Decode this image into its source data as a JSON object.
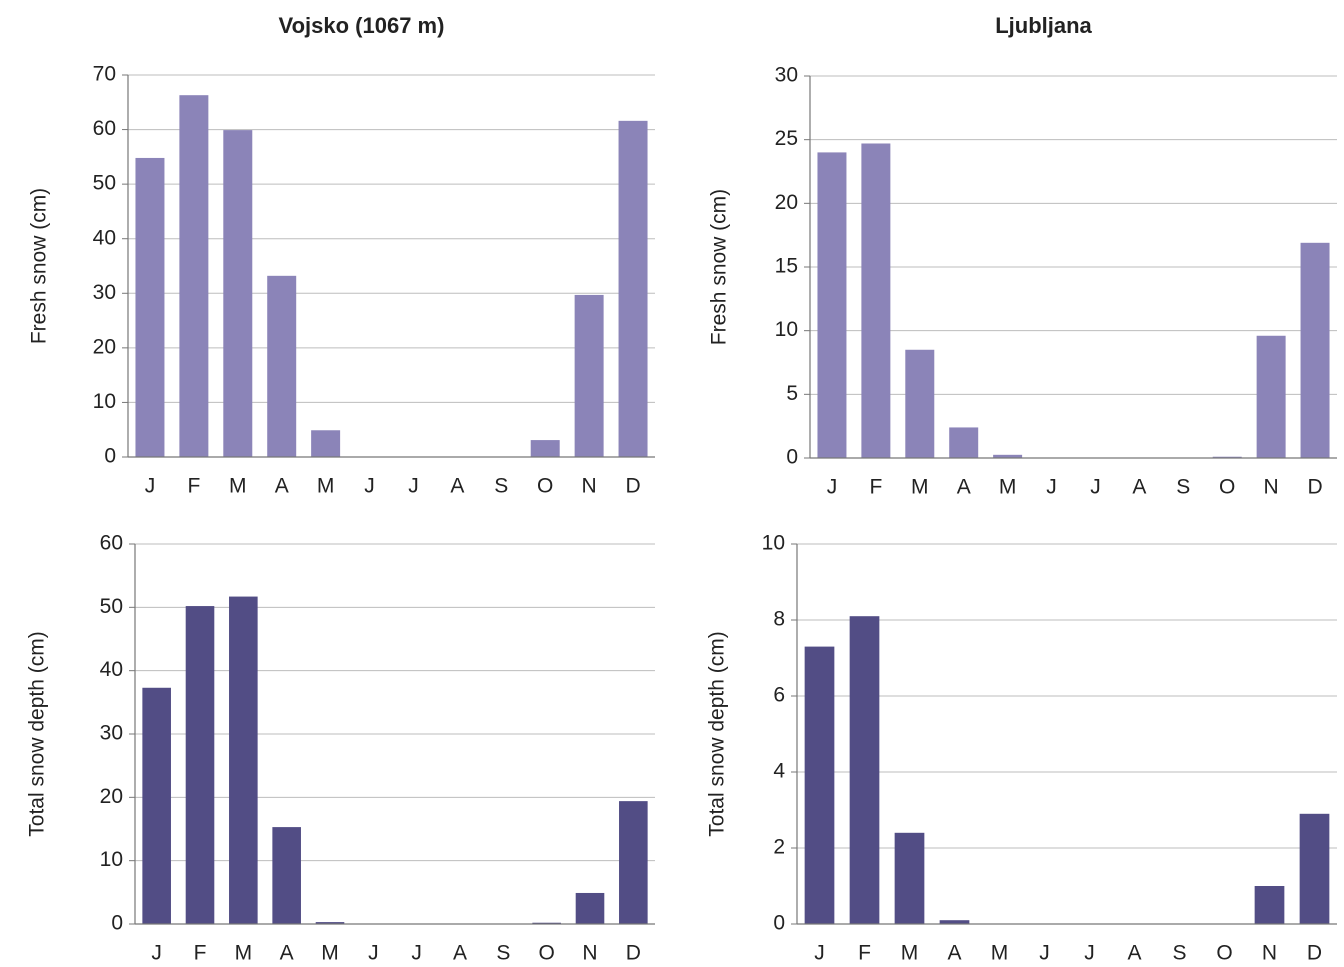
{
  "chart_data": [
    {
      "type": "bar",
      "title": "Vojsko (1067 m)",
      "y_label": "Fresh snow (cm)",
      "categories": [
        "J",
        "F",
        "M",
        "A",
        "M",
        "J",
        "J",
        "A",
        "S",
        "O",
        "N",
        "D"
      ],
      "values": [
        54.8,
        66.3,
        59.9,
        33.2,
        4.9,
        0,
        0,
        0,
        0,
        3.1,
        29.7,
        61.6
      ],
      "color": "#8b84b8",
      "ylim": [
        0,
        70
      ],
      "yticks": [
        0,
        10,
        20,
        30,
        40,
        50,
        60,
        70
      ],
      "grid": true
    },
    {
      "type": "bar",
      "title": "Ljubljana",
      "y_label": "Fresh snow (cm)",
      "categories": [
        "J",
        "F",
        "M",
        "A",
        "M",
        "J",
        "J",
        "A",
        "S",
        "O",
        "N",
        "D"
      ],
      "values": [
        24.0,
        24.7,
        8.5,
        2.4,
        0.25,
        0,
        0,
        0,
        0,
        0.1,
        9.6,
        16.9
      ],
      "color": "#8b84b8",
      "ylim": [
        0,
        30
      ],
      "yticks": [
        0,
        5,
        10,
        15,
        20,
        25,
        30
      ],
      "grid": true
    },
    {
      "type": "bar",
      "y_label": "Total snow depth (cm)",
      "categories": [
        "J",
        "F",
        "M",
        "A",
        "M",
        "J",
        "J",
        "A",
        "S",
        "O",
        "N",
        "D"
      ],
      "values": [
        37.3,
        50.2,
        51.7,
        15.3,
        0.3,
        0,
        0,
        0,
        0,
        0.2,
        4.9,
        19.4
      ],
      "color": "#524d85",
      "ylim": [
        0,
        60
      ],
      "yticks": [
        0,
        10,
        20,
        30,
        40,
        50,
        60
      ],
      "grid": true
    },
    {
      "type": "bar",
      "y_label": "Total snow depth (cm)",
      "categories": [
        "J",
        "F",
        "M",
        "A",
        "M",
        "J",
        "J",
        "A",
        "S",
        "O",
        "N",
        "D"
      ],
      "values": [
        7.3,
        8.1,
        2.4,
        0.1,
        0,
        0,
        0,
        0,
        0,
        0,
        1.0,
        2.9
      ],
      "color": "#524d85",
      "ylim": [
        0,
        10
      ],
      "yticks": [
        0,
        2,
        4,
        6,
        8,
        10
      ],
      "grid": true
    }
  ]
}
